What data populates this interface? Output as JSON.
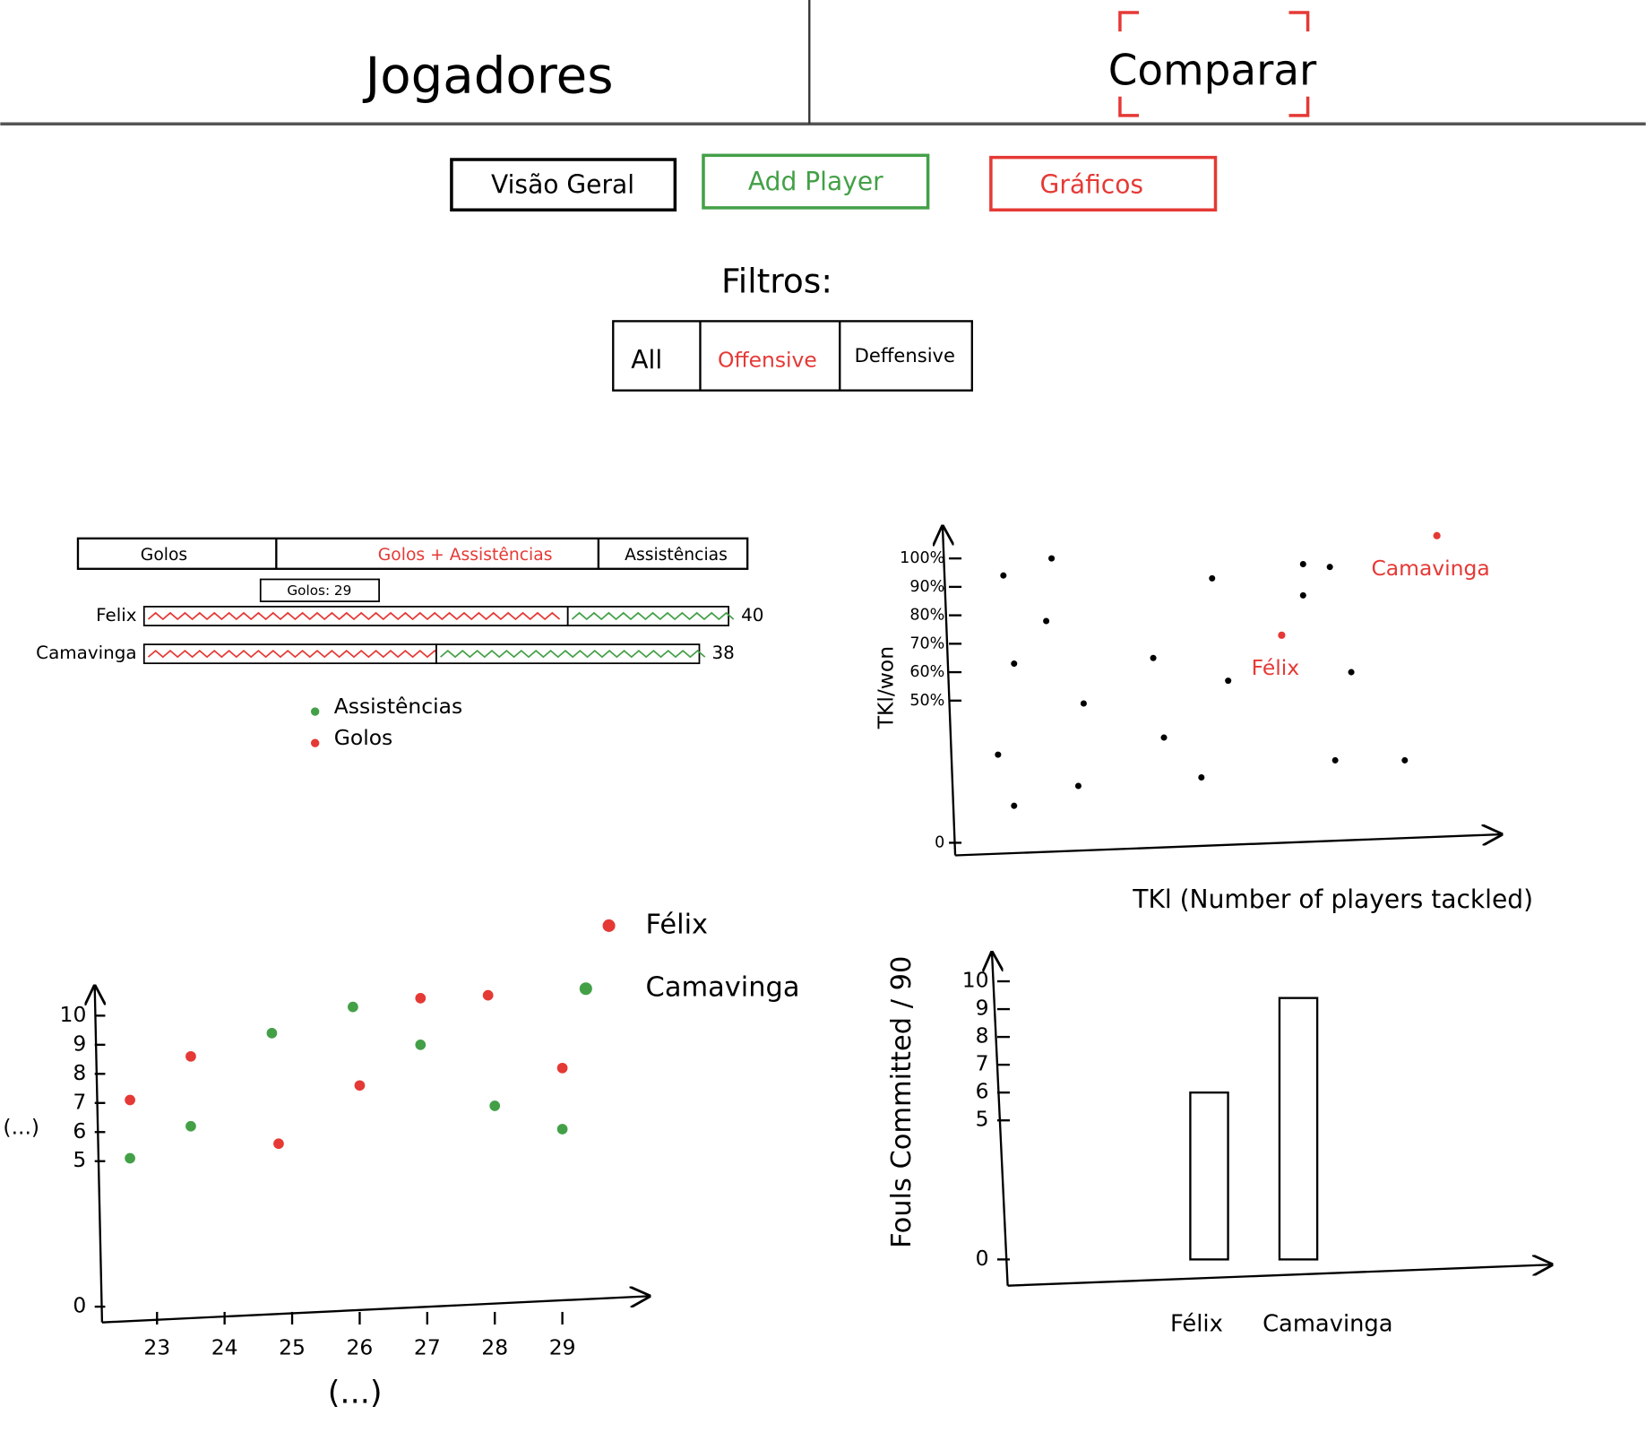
{
  "tabs": [
    "Jogadores",
    "Comparar"
  ],
  "buttons": [
    "Visão Geral",
    "Add Player",
    "Gráficos"
  ],
  "filters_label": "Filtros:",
  "filters": [
    "All",
    "Offensive",
    "Deffensive"
  ],
  "stacked_bar": {
    "type": "stacked-hbar",
    "tabs": [
      "Golos",
      "Golos + Assistências",
      "Assistências"
    ],
    "tooltip": "Golos: 29",
    "categories": [
      "Felix",
      "Camavinga"
    ],
    "series": [
      {
        "name": "Golos",
        "color": "#e53935",
        "values": [
          29,
          20
        ]
      },
      {
        "name": "Assistências",
        "color": "#43a047",
        "values": [
          11,
          18
        ]
      }
    ],
    "totals": [
      40,
      38
    ]
  },
  "scatter": {
    "type": "scatter",
    "y_label": "TKl/won",
    "x_label": "TKl (Number of players tackled)",
    "xlim": [
      0,
      100
    ],
    "ylim": [
      0,
      110
    ],
    "yticks": [
      0,
      {
        "value": 50,
        "label": "50%"
      },
      {
        "value": 60,
        "label": "60%"
      },
      {
        "value": 70,
        "label": "70%"
      },
      {
        "value": 80,
        "label": "80%"
      },
      {
        "value": 90,
        "label": "90%"
      },
      {
        "value": 100,
        "label": "100%"
      }
    ],
    "series": [
      {
        "color": "#000000",
        "x": [
          9,
          18,
          48,
          65,
          70,
          65,
          17,
          11,
          37,
          51,
          74,
          24,
          39,
          8,
          23,
          46,
          71,
          84,
          11
        ],
        "y": [
          94,
          100,
          93,
          98,
          97,
          87,
          78,
          63,
          65,
          57,
          60,
          49,
          37,
          31,
          20,
          23,
          29,
          29,
          13
        ]
      }
    ],
    "labeled_points": [
      {
        "name": "Camavinga",
        "color": "#e53935",
        "x": 90,
        "y": 108
      },
      {
        "name": "Félix",
        "color": "#e53935",
        "x": 61,
        "y": 73
      }
    ]
  },
  "line": {
    "type": "line",
    "x_label": "(...)",
    "y_label": "(...)",
    "xlim": [
      22,
      30
    ],
    "ylim": [
      0,
      11
    ],
    "xticks": [
      23,
      24,
      25,
      26,
      27,
      28,
      29
    ],
    "yticks": [
      0,
      5,
      6,
      7,
      8,
      9,
      10
    ],
    "series": [
      {
        "name": "Félix",
        "color": "#e53935",
        "x": [
          22.6,
          23.5,
          24.8,
          26,
          26.9,
          27.9,
          29
        ],
        "values": [
          7.1,
          8.6,
          5.6,
          7.6,
          10.6,
          10.7,
          8.2
        ]
      },
      {
        "name": "Camavinga",
        "color": "#43a047",
        "x": [
          22.6,
          23.5,
          24.7,
          25.9,
          26.9,
          28,
          29
        ],
        "values": [
          5.1,
          6.2,
          9.4,
          10.3,
          9,
          6.9,
          6.1
        ]
      }
    ]
  },
  "bar": {
    "type": "bar",
    "y_label": "Fouls Committed / 90",
    "categories": [
      "Félix",
      "Camavinga"
    ],
    "values": [
      6,
      9.4
    ],
    "ylim": [
      0,
      10
    ],
    "yticks": [
      0,
      5,
      6,
      7,
      8,
      9,
      10
    ]
  }
}
